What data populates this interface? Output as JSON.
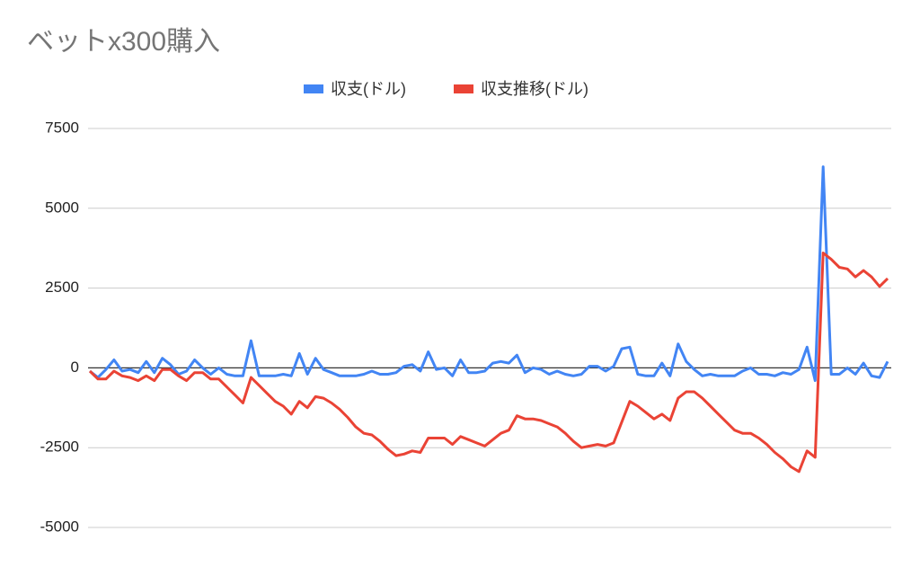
{
  "chart_data": {
    "type": "line",
    "title": "ベットx300購入",
    "series": [
      {
        "name": "収支(ドル)",
        "color": "#4285f4",
        "values": [
          -100,
          -300,
          -50,
          250,
          -100,
          -50,
          -150,
          200,
          -150,
          300,
          100,
          -200,
          -100,
          250,
          0,
          -200,
          0,
          -200,
          -250,
          -250,
          850,
          -250,
          -250,
          -250,
          -200,
          -250,
          450,
          -200,
          300,
          -50,
          -150,
          -250,
          -250,
          -250,
          -200,
          -100,
          -200,
          -200,
          -150,
          50,
          100,
          -100,
          500,
          -50,
          0,
          -250,
          250,
          -150,
          -150,
          -100,
          150,
          200,
          150,
          400,
          -150,
          0,
          -50,
          -200,
          -100,
          -200,
          -250,
          -200,
          50,
          50,
          -100,
          50,
          600,
          650,
          -200,
          -250,
          -250,
          150,
          -250,
          750,
          200,
          -50,
          -250,
          -200,
          -250,
          -250,
          -250,
          -100,
          0,
          -200,
          -200,
          -250,
          -150,
          -200,
          -50,
          650,
          -400,
          6300,
          -200,
          -200,
          0,
          -200,
          150,
          -250,
          -300,
          200
        ]
      },
      {
        "name": "収支推移(ドル)",
        "color": "#ea4335",
        "values": [
          -100,
          -350,
          -350,
          -100,
          -250,
          -300,
          -400,
          -250,
          -400,
          -50,
          -50,
          -250,
          -400,
          -150,
          -150,
          -350,
          -350,
          -600,
          -850,
          -1100,
          -300,
          -550,
          -800,
          -1050,
          -1200,
          -1450,
          -1050,
          -1250,
          -900,
          -950,
          -1100,
          -1300,
          -1550,
          -1850,
          -2050,
          -2100,
          -2300,
          -2550,
          -2750,
          -2700,
          -2600,
          -2650,
          -2200,
          -2200,
          -2200,
          -2400,
          -2150,
          -2250,
          -2350,
          -2450,
          -2250,
          -2050,
          -1950,
          -1500,
          -1600,
          -1600,
          -1650,
          -1750,
          -1850,
          -2050,
          -2300,
          -2500,
          -2450,
          -2400,
          -2450,
          -2350,
          -1700,
          -1050,
          -1200,
          -1400,
          -1600,
          -1450,
          -1650,
          -950,
          -750,
          -750,
          -950,
          -1200,
          -1450,
          -1700,
          -1950,
          -2050,
          -2050,
          -2200,
          -2400,
          -2650,
          -2850,
          -3100,
          -3250,
          -2600,
          -2800,
          3600,
          3400,
          3150,
          3100,
          2850,
          3050,
          2850,
          2550,
          2800
        ]
      }
    ],
    "ylim": [
      -5000,
      7500
    ],
    "yticks": [
      -5000,
      -2500,
      0,
      2500,
      5000,
      7500
    ],
    "grid": true
  }
}
